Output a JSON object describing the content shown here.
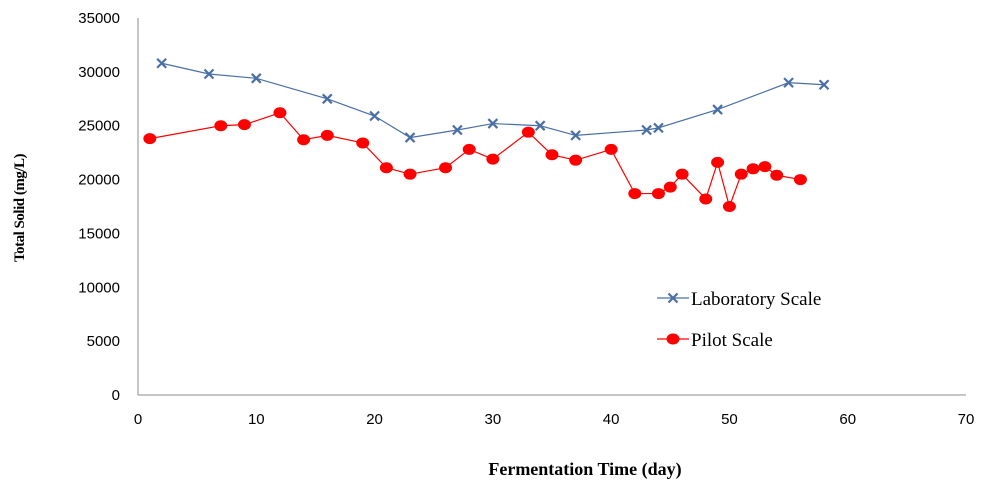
{
  "chart_data": {
    "type": "line",
    "title": "",
    "xlabel": "Fermentation Time (day)",
    "ylabel": "Total Solid (mg/L)",
    "xlim": [
      0,
      70
    ],
    "ylim": [
      0,
      35000
    ],
    "xticks": [
      0,
      10,
      20,
      30,
      40,
      50,
      60,
      70
    ],
    "yticks": [
      0,
      5000,
      10000,
      15000,
      20000,
      25000,
      30000,
      35000
    ],
    "grid": false,
    "legend_position": "right",
    "series": [
      {
        "name": "Laboratory Scale",
        "color": "#4a6fa5",
        "marker": "x",
        "x": [
          2,
          6,
          10,
          16,
          20,
          23,
          27,
          30,
          34,
          37,
          43,
          44,
          49,
          55,
          58
        ],
        "y": [
          30800,
          29800,
          29400,
          27500,
          25900,
          23900,
          24600,
          25200,
          25000,
          24100,
          24600,
          24800,
          26500,
          29000,
          28800
        ]
      },
      {
        "name": "Pilot Scale",
        "color": "#ff0000",
        "marker": "circle",
        "x": [
          1,
          7,
          9,
          12,
          14,
          16,
          19,
          21,
          23,
          26,
          28,
          30,
          33,
          35,
          37,
          40,
          42,
          44,
          45,
          46,
          48,
          49,
          50,
          51,
          52,
          53,
          54,
          56
        ],
        "y": [
          23800,
          25000,
          25100,
          26200,
          23700,
          24100,
          23400,
          21100,
          20500,
          21100,
          22800,
          21900,
          24400,
          22300,
          21800,
          22800,
          18700,
          18700,
          19300,
          20500,
          18200,
          21600,
          17500,
          20500,
          21000,
          21200,
          20400,
          20000
        ]
      }
    ]
  }
}
